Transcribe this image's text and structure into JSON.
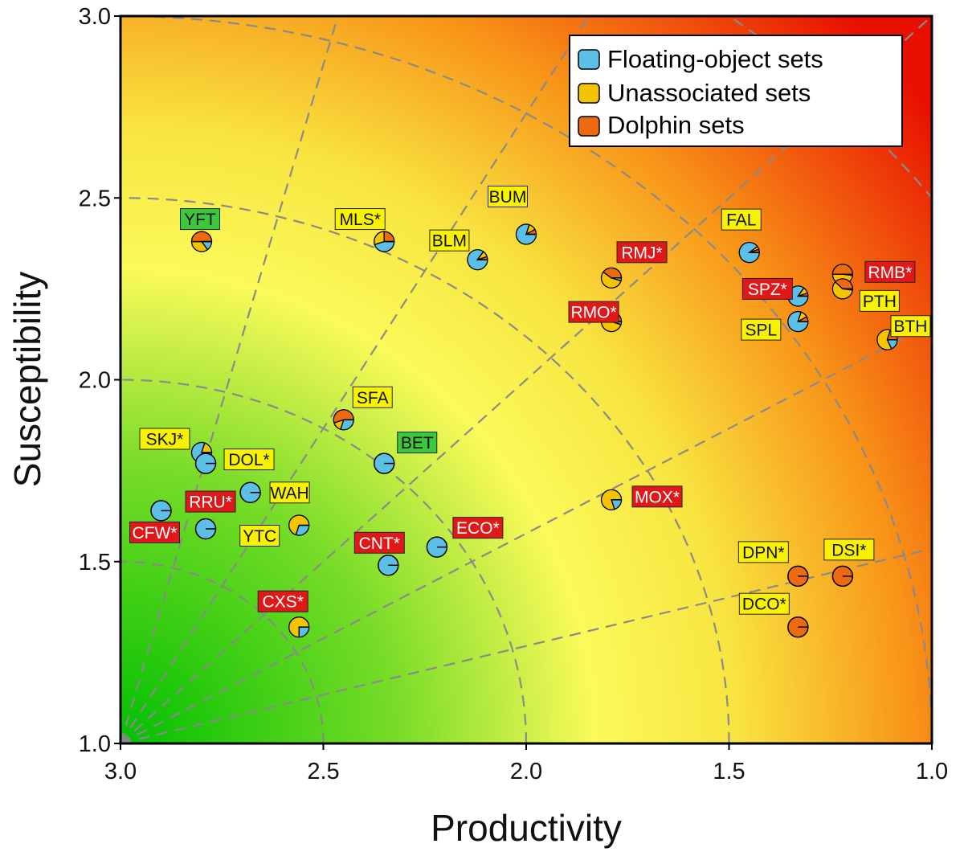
{
  "chart_data": {
    "type": "scatter",
    "xlabel": "Productivity",
    "ylabel": "Susceptibility",
    "xlim": [
      3.0,
      1.0
    ],
    "ylim": [
      1.0,
      3.0
    ],
    "x_ticks": [
      "3.0",
      "2.5",
      "2.0",
      "1.5",
      "1.0"
    ],
    "y_ticks": [
      "3.0",
      "2.5",
      "2.0",
      "1.5",
      "1.0"
    ],
    "x_reversed": true,
    "background": "risk gradient: green near (3.0, 1.0) through yellow to red near (1.0, 3.0)",
    "reference_lines": "dashed grey arcs of equal distance and dashed rays from origin (3.0, 1.0)",
    "colors": {
      "floating": "#5bbfe8",
      "unassociated": "#f5c400",
      "dolphin": "#ee6a10",
      "label_yellow": "#f8f200",
      "label_red": "#e01818",
      "label_green": "#3cc83c"
    },
    "legend": {
      "placement": "top-right",
      "entries": [
        {
          "label": "Floating-object sets",
          "color": "#5bbfe8"
        },
        {
          "label": "Unassociated sets",
          "color": "#f5c400"
        },
        {
          "label": "Dolphin sets",
          "color": "#ee6a10"
        }
      ]
    },
    "label_color_key": "yellow label, red label (white text), green label",
    "points": [
      {
        "label": "YFT",
        "label_style": "green",
        "x": 2.8,
        "y": 2.38,
        "pie": [
          0.15,
          0.35,
          0.5
        ]
      },
      {
        "label": "MLS*",
        "label_style": "yellow",
        "x": 2.35,
        "y": 2.38,
        "pie": [
          0.45,
          0.3,
          0.25
        ]
      },
      {
        "label": "BUM",
        "label_style": "yellow",
        "x": 2.0,
        "y": 2.4,
        "pie": [
          0.8,
          0.12,
          0.08
        ]
      },
      {
        "label": "BLM",
        "label_style": "yellow",
        "x": 2.12,
        "y": 2.33,
        "pie": [
          0.85,
          0.1,
          0.05
        ]
      },
      {
        "label": "RMJ*",
        "label_style": "red",
        "x": 1.79,
        "y": 2.28,
        "pie": [
          0.05,
          0.55,
          0.4
        ]
      },
      {
        "label": "RMO*",
        "label_style": "red",
        "x": 1.79,
        "y": 2.16,
        "pie": [
          0.05,
          0.8,
          0.15
        ]
      },
      {
        "label": "FAL",
        "label_style": "yellow",
        "x": 1.45,
        "y": 2.35,
        "pie": [
          0.9,
          0.05,
          0.05
        ]
      },
      {
        "label": "SPZ*",
        "label_style": "red",
        "x": 1.33,
        "y": 2.23,
        "pie": [
          0.85,
          0.1,
          0.05
        ]
      },
      {
        "label": "SPL",
        "label_style": "yellow",
        "x": 1.33,
        "y": 2.16,
        "pie": [
          0.8,
          0.12,
          0.08
        ]
      },
      {
        "label": "RMB*",
        "label_style": "red",
        "x": 1.22,
        "y": 2.29,
        "pie": [
          0.02,
          0.48,
          0.5
        ]
      },
      {
        "label": "PTH",
        "label_style": "yellow",
        "x": 1.22,
        "y": 2.25,
        "pie": [
          0.02,
          0.6,
          0.38
        ]
      },
      {
        "label": "BTH",
        "label_style": "yellow",
        "x": 1.11,
        "y": 2.11,
        "pie": [
          0.18,
          0.62,
          0.2
        ]
      },
      {
        "label": "SFA",
        "label_style": "yellow",
        "x": 2.45,
        "y": 1.89,
        "pie": [
          0.3,
          0.15,
          0.55
        ]
      },
      {
        "label": "SKJ*",
        "label_style": "yellow",
        "x": 2.8,
        "y": 1.8,
        "pie": [
          0.8,
          0.2,
          0.0
        ]
      },
      {
        "label": "DOL*",
        "label_style": "yellow",
        "x": 2.79,
        "y": 1.77,
        "pie": [
          1.0,
          0.0,
          0.0
        ]
      },
      {
        "label": "BET",
        "label_style": "green",
        "x": 2.35,
        "y": 1.77,
        "pie": [
          1.0,
          0.0,
          0.0
        ]
      },
      {
        "label": "WAH",
        "label_style": "yellow",
        "x": 2.68,
        "y": 1.69,
        "pie": [
          1.0,
          0.0,
          0.0
        ]
      },
      {
        "label": "MOX*",
        "label_style": "red",
        "x": 1.79,
        "y": 1.67,
        "pie": [
          0.2,
          0.8,
          0.0
        ]
      },
      {
        "label": "CFW*",
        "label_style": "red",
        "x": 2.9,
        "y": 1.64,
        "pie": [
          1.0,
          0.0,
          0.0
        ]
      },
      {
        "label": "RRU*",
        "label_style": "red",
        "x": 2.79,
        "y": 1.59,
        "pie": [
          1.0,
          0.0,
          0.0
        ]
      },
      {
        "label": "YTC",
        "label_style": "yellow",
        "x": 2.56,
        "y": 1.6,
        "pie": [
          0.3,
          0.7,
          0.0
        ]
      },
      {
        "label": "ECO*",
        "label_style": "red",
        "x": 2.22,
        "y": 1.54,
        "pie": [
          1.0,
          0.0,
          0.0
        ]
      },
      {
        "label": "CNT*",
        "label_style": "red",
        "x": 2.34,
        "y": 1.49,
        "pie": [
          1.0,
          0.0,
          0.0
        ]
      },
      {
        "label": "CXS*",
        "label_style": "red",
        "x": 2.56,
        "y": 1.32,
        "pie": [
          0.25,
          0.75,
          0.0
        ]
      },
      {
        "label": "DPN*",
        "label_style": "yellow",
        "x": 1.33,
        "y": 1.46,
        "pie": [
          0.0,
          0.0,
          1.0
        ]
      },
      {
        "label": "DSI*",
        "label_style": "yellow",
        "x": 1.22,
        "y": 1.46,
        "pie": [
          0.0,
          0.0,
          1.0
        ]
      },
      {
        "label": "DCO*",
        "label_style": "yellow",
        "x": 1.33,
        "y": 1.32,
        "pie": [
          0.0,
          0.0,
          1.0
        ]
      }
    ]
  }
}
